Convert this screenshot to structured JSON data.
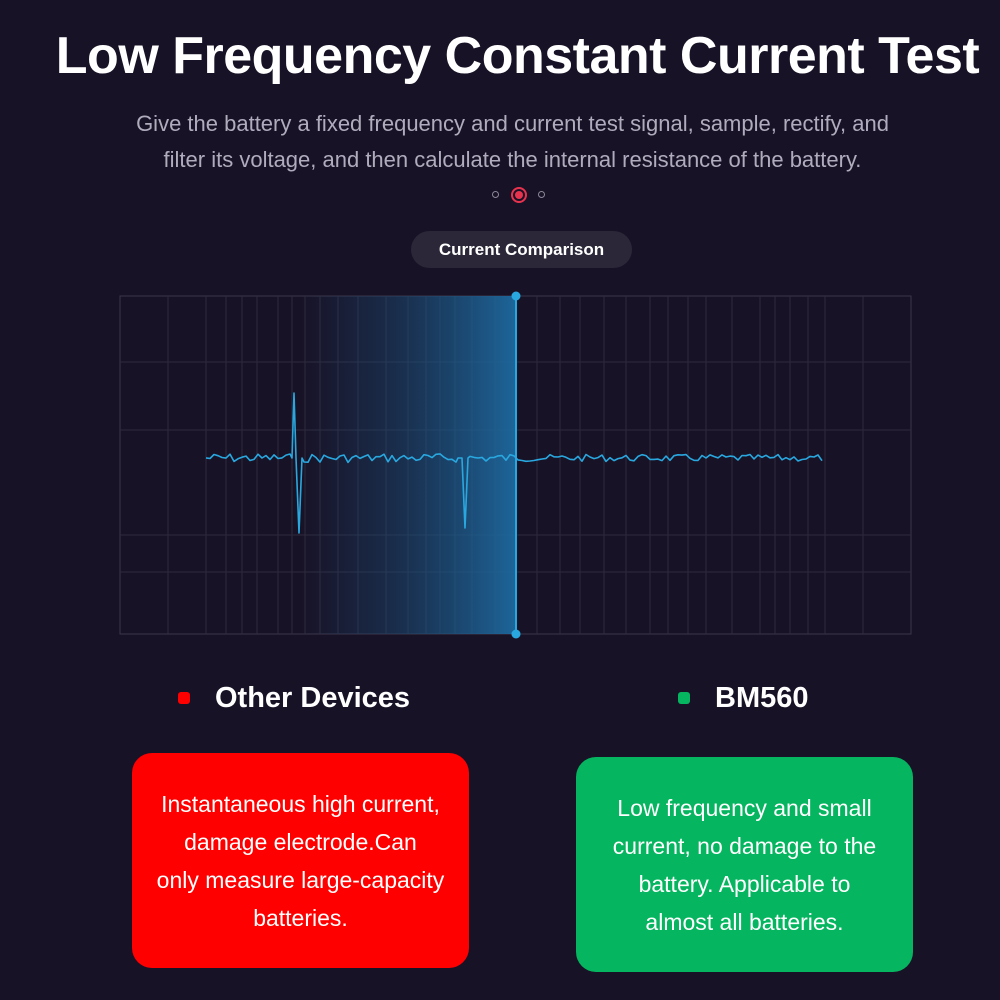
{
  "title": "Low Frequency Constant Current Test",
  "subtitle_line1": "Give the battery a fixed frequency and current test signal, sample, rectify, and",
  "subtitle_line2": "filter its voltage, and then calculate the internal resistance of the battery.",
  "pagination": {
    "total": 3,
    "active": 2
  },
  "comparison_label": "Current Comparison",
  "legend": {
    "other": {
      "label": "Other Devices",
      "color": "#ff0000"
    },
    "bm": {
      "label": "BM560",
      "color": "#06b55f"
    }
  },
  "cards": {
    "other": {
      "line1": "Instantaneous high current,",
      "line2": "damage electrode.Can",
      "line3": "only measure large-capacity",
      "line4": "batteries."
    },
    "bm": {
      "line1": "Low frequency and small",
      "line2": "current, no damage to the",
      "line3": "battery. Applicable to",
      "line4": "almost all batteries."
    }
  },
  "colors": {
    "background": "#181226",
    "signal": "#29a8e0",
    "grid": "#3a364a"
  }
}
